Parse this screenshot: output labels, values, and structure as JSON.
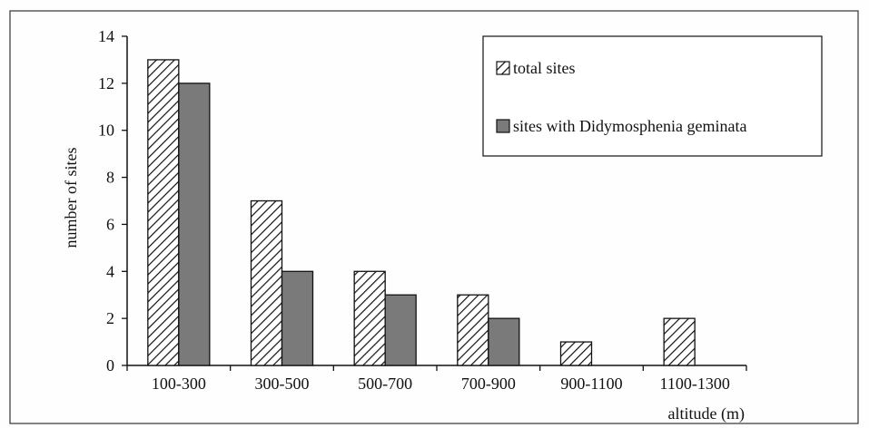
{
  "chart_data": {
    "type": "bar",
    "title": "",
    "xlabel": "altitude (m)",
    "ylabel": "number of sites",
    "ylim": [
      0,
      14
    ],
    "yticks": [
      0,
      2,
      4,
      6,
      8,
      10,
      12,
      14
    ],
    "grid": false,
    "legend_position": "top-right",
    "categories": [
      "100-300",
      "300-500",
      "500-700",
      "700-900",
      "900-1100",
      "1100-1300"
    ],
    "series": [
      {
        "name": "total sites",
        "pattern": "hatched",
        "values": [
          13,
          7,
          4,
          3,
          1,
          2
        ]
      },
      {
        "name": "sites with Didymosphenia geminata",
        "pattern": "solid-gray",
        "color": "#7a7a7a",
        "values": [
          12,
          4,
          3,
          2,
          0,
          0
        ]
      }
    ]
  }
}
